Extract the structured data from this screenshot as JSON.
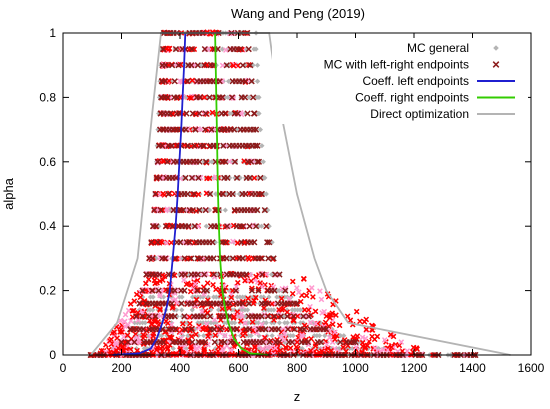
{
  "chart_data": {
    "type": "scatter",
    "title": "Wang and Peng (2019)",
    "xlabel": "z",
    "ylabel": "alpha",
    "xlim": [
      0,
      1600
    ],
    "ylim": [
      0,
      1
    ],
    "x_ticks": [
      "0",
      "200",
      "400",
      "600",
      "800",
      "1000",
      "1200",
      "1400",
      "1600"
    ],
    "y_ticks": [
      "0",
      "0.2",
      "0.4",
      "0.6",
      "0.8",
      "1"
    ],
    "grid": false,
    "legend_position": "top-right",
    "series": [
      {
        "name": "MC general",
        "kind": "scatter",
        "marker": "diamond",
        "color": "#b4b4b4",
        "alpha_levels": [
          0,
          0.02,
          0.04,
          0.06,
          0.08,
          0.1,
          0.12,
          0.14,
          0.16,
          0.18,
          0.2,
          0.25,
          0.3,
          0.35,
          0.4,
          0.45,
          0.5,
          0.55,
          0.6,
          0.65,
          0.7,
          0.75,
          0.8,
          0.85,
          0.9,
          0.95,
          1.0
        ],
        "z_min": [
          110,
          170,
          200,
          220,
          235,
          245,
          255,
          262,
          268,
          272,
          280,
          290,
          300,
          305,
          310,
          312,
          315,
          318,
          320,
          322,
          325,
          327,
          330,
          332,
          335,
          338,
          340
        ],
        "z_max": [
          1360,
          1120,
          1020,
          960,
          920,
          880,
          850,
          820,
          800,
          780,
          760,
          740,
          720,
          715,
          705,
          700,
          695,
          690,
          685,
          680,
          675,
          670,
          670,
          665,
          665,
          660,
          660
        ]
      },
      {
        "name": "MC with left-right endpoints",
        "kind": "scatter",
        "marker": "x",
        "color": "#8b1a1a",
        "alpha_levels": [
          0,
          0.04,
          0.08,
          0.12,
          0.16,
          0.2,
          0.25,
          0.3,
          0.35,
          0.4,
          0.45,
          0.5,
          0.55,
          0.6,
          0.65,
          0.7,
          0.75,
          0.8,
          0.85,
          0.9,
          0.95,
          1.0
        ],
        "z_min": [
          95,
          200,
          230,
          250,
          262,
          272,
          285,
          295,
          302,
          308,
          312,
          316,
          320,
          324,
          328,
          332,
          334,
          336,
          338,
          340,
          342,
          345
        ],
        "z_max": [
          1410,
          1000,
          900,
          840,
          800,
          760,
          740,
          720,
          705,
          695,
          690,
          680,
          675,
          670,
          665,
          660,
          655,
          650,
          645,
          640,
          635,
          630
        ]
      },
      {
        "name": "Coeff. left endpoints",
        "kind": "line",
        "color": "#1f1fd0",
        "points": [
          [
            170,
            0
          ],
          [
            260,
            0.005
          ],
          [
            300,
            0.02
          ],
          [
            320,
            0.05
          ],
          [
            340,
            0.1
          ],
          [
            355,
            0.15
          ],
          [
            365,
            0.2
          ],
          [
            375,
            0.3
          ],
          [
            385,
            0.4
          ],
          [
            392,
            0.5
          ],
          [
            398,
            0.6
          ],
          [
            404,
            0.7
          ],
          [
            409,
            0.8
          ],
          [
            414,
            0.9
          ],
          [
            418,
            1.0
          ]
        ]
      },
      {
        "name": "Coeff. right endpoints",
        "kind": "line",
        "color": "#33cc00",
        "points": [
          [
            520,
            1.0
          ],
          [
            522,
            0.9
          ],
          [
            524,
            0.8
          ],
          [
            526,
            0.7
          ],
          [
            528,
            0.6
          ],
          [
            530,
            0.5
          ],
          [
            533,
            0.4
          ],
          [
            537,
            0.3
          ],
          [
            545,
            0.2
          ],
          [
            553,
            0.15
          ],
          [
            565,
            0.1
          ],
          [
            585,
            0.05
          ],
          [
            610,
            0.02
          ],
          [
            640,
            0.005
          ],
          [
            700,
            0
          ]
        ]
      },
      {
        "name": "Direct optimization",
        "kind": "line",
        "color": "#b4b4b4",
        "points": [
          [
            95,
            0
          ],
          [
            185,
            0.1
          ],
          [
            255,
            0.3
          ],
          [
            305,
            0.75
          ],
          [
            335,
            1.0
          ],
          [
            705,
            1.0
          ],
          [
            735,
            0.8
          ],
          [
            800,
            0.5
          ],
          [
            860,
            0.3
          ],
          [
            900,
            0.2
          ],
          [
            975,
            0.1
          ],
          [
            1530,
            0
          ]
        ]
      }
    ]
  }
}
